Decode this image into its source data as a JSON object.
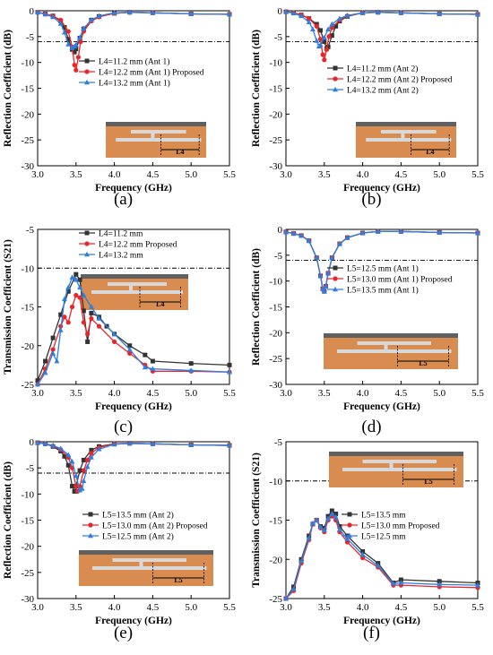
{
  "colors": {
    "black": "#333333",
    "red": "#e8262a",
    "blue": "#2d7fe0",
    "copper": "#d98c4f",
    "ground": "#606060",
    "strip": "#d8d8d8"
  },
  "chart_data": [
    {
      "type": "line",
      "caption": "(a)",
      "xlabel": "Frequency (GHz)",
      "ylabel": "Reflection Coefficient (dB)",
      "xlim": [
        3.0,
        5.5
      ],
      "ylim": [
        -30,
        0
      ],
      "xticks": [
        "3.0",
        "3.5",
        "4.0",
        "4.5",
        "5.0",
        "5.5"
      ],
      "yticks": [
        "0",
        "-5",
        "-10",
        "-15",
        "-20",
        "-25",
        "-30"
      ],
      "threshold": -6,
      "inset_label": "L4",
      "series": [
        {
          "name": "L4=11.2 mm (Ant 1)",
          "color": "#333333",
          "marker": "square",
          "x": [
            3.0,
            3.1,
            3.2,
            3.3,
            3.35,
            3.4,
            3.45,
            3.48,
            3.5,
            3.55,
            3.6,
            3.7,
            3.8,
            4.0,
            4.2,
            4.5,
            5.0,
            5.5
          ],
          "y": [
            -0.3,
            -0.6,
            -1.0,
            -2.0,
            -3.2,
            -5.5,
            -7.5,
            -8.0,
            -7.4,
            -5.3,
            -3.5,
            -1.8,
            -1.1,
            -0.5,
            -0.3,
            -0.4,
            -0.6,
            -0.7
          ]
        },
        {
          "name": "L4=12.2 mm (Ant 1) Proposed",
          "color": "#e8262a",
          "marker": "circle",
          "x": [
            3.0,
            3.1,
            3.2,
            3.3,
            3.4,
            3.45,
            3.48,
            3.5,
            3.53,
            3.56,
            3.6,
            3.7,
            3.8,
            4.0,
            4.2,
            4.5,
            5.0,
            5.5
          ],
          "y": [
            -0.3,
            -0.6,
            -1.0,
            -1.8,
            -4.0,
            -7.0,
            -10.5,
            -11.5,
            -9.0,
            -6.0,
            -4.0,
            -2.0,
            -1.2,
            -0.5,
            -0.3,
            -0.4,
            -0.6,
            -0.7
          ]
        },
        {
          "name": "L4=13.2 mm (Ant 1)",
          "color": "#2d7fe0",
          "marker": "triangle",
          "x": [
            3.0,
            3.1,
            3.2,
            3.3,
            3.35,
            3.4,
            3.45,
            3.48,
            3.5,
            3.55,
            3.6,
            3.7,
            3.8,
            4.0,
            4.2,
            4.5,
            5.0,
            5.5
          ],
          "y": [
            -0.3,
            -0.7,
            -1.2,
            -2.5,
            -4.2,
            -6.5,
            -7.2,
            -6.9,
            -6.6,
            -5.2,
            -3.4,
            -1.8,
            -1.0,
            -0.4,
            -0.3,
            -0.4,
            -0.6,
            -0.7
          ]
        }
      ]
    },
    {
      "type": "line",
      "caption": "(b)",
      "xlabel": "Frequency (GHz)",
      "ylabel": "Reflection Coefficient (dB)",
      "xlim": [
        3.0,
        5.5
      ],
      "ylim": [
        -30,
        0
      ],
      "xticks": [
        "3.0",
        "3.5",
        "4.0",
        "4.5",
        "5.0",
        "5.5"
      ],
      "yticks": [
        "0",
        "-5",
        "-10",
        "-15",
        "-20",
        "-25",
        "-30"
      ],
      "threshold": -6,
      "inset_label": "L4",
      "series": [
        {
          "name": "L4=11.2 mm (Ant 2)",
          "color": "#333333",
          "marker": "square",
          "x": [
            3.0,
            3.1,
            3.2,
            3.3,
            3.4,
            3.45,
            3.5,
            3.53,
            3.55,
            3.6,
            3.65,
            3.7,
            3.8,
            4.0,
            4.2,
            4.5,
            5.0,
            5.5
          ],
          "y": [
            -0.2,
            -0.4,
            -0.8,
            -1.5,
            -2.6,
            -3.8,
            -6.0,
            -7.3,
            -7.0,
            -4.8,
            -3.0,
            -2.0,
            -1.1,
            -0.4,
            -0.3,
            -0.4,
            -0.6,
            -0.7
          ]
        },
        {
          "name": "L4=12.2 mm (Ant 2) Proposed",
          "color": "#e8262a",
          "marker": "circle",
          "x": [
            3.0,
            3.1,
            3.2,
            3.3,
            3.4,
            3.45,
            3.48,
            3.5,
            3.53,
            3.56,
            3.6,
            3.7,
            3.8,
            4.0,
            4.2,
            4.5,
            5.0,
            5.5
          ],
          "y": [
            -0.2,
            -0.4,
            -0.8,
            -1.5,
            -3.0,
            -5.5,
            -8.5,
            -9.5,
            -7.5,
            -5.0,
            -3.3,
            -1.8,
            -1.0,
            -0.4,
            -0.3,
            -0.4,
            -0.6,
            -0.7
          ]
        },
        {
          "name": "L4=13.2 mm (Ant 2)",
          "color": "#2d7fe0",
          "marker": "triangle",
          "x": [
            3.0,
            3.1,
            3.2,
            3.3,
            3.35,
            3.4,
            3.43,
            3.45,
            3.5,
            3.55,
            3.6,
            3.7,
            3.8,
            4.0,
            4.2,
            4.5,
            5.0,
            5.5
          ],
          "y": [
            -0.2,
            -0.5,
            -1.0,
            -2.2,
            -3.6,
            -5.8,
            -6.9,
            -6.6,
            -5.2,
            -3.6,
            -2.6,
            -1.5,
            -0.9,
            -0.4,
            -0.3,
            -0.4,
            -0.6,
            -0.7
          ]
        }
      ]
    },
    {
      "type": "line",
      "caption": "(c)",
      "xlabel": "Frequency (GHz)",
      "ylabel": "Transmission Coefficient (S21)",
      "xlim": [
        3.0,
        5.5
      ],
      "ylim": [
        -25,
        -5
      ],
      "xticks": [
        "3.0",
        "3.5",
        "4.0",
        "4.5",
        "5.0",
        "5.5"
      ],
      "yticks": [
        "-5",
        "-10",
        "-15",
        "-20",
        "-25"
      ],
      "threshold": -10,
      "inset_label": "L4",
      "series": [
        {
          "name": "L4=11.2 mm",
          "color": "#333333",
          "marker": "square",
          "x": [
            3.0,
            3.1,
            3.2,
            3.3,
            3.4,
            3.5,
            3.55,
            3.6,
            3.65,
            3.7,
            3.8,
            3.9,
            4.0,
            4.2,
            4.4,
            4.5,
            5.0,
            5.5
          ],
          "y": [
            -24.5,
            -22.0,
            -19.0,
            -16.0,
            -13.0,
            -10.8,
            -11.5,
            -15.5,
            -19.5,
            -15.8,
            -16.3,
            -17.5,
            -18.5,
            -20.0,
            -21.2,
            -22.0,
            -22.3,
            -22.5
          ]
        },
        {
          "name": "L4=12.2 mm Proposed",
          "color": "#e8262a",
          "marker": "circle",
          "x": [
            3.0,
            3.1,
            3.2,
            3.3,
            3.35,
            3.4,
            3.45,
            3.5,
            3.55,
            3.6,
            3.65,
            3.7,
            3.8,
            4.0,
            4.2,
            4.4,
            4.5,
            5.0,
            5.5
          ],
          "y": [
            -25.0,
            -23.0,
            -20.5,
            -17.5,
            -16.3,
            -17.0,
            -15.0,
            -13.5,
            -13.8,
            -17.0,
            -18.5,
            -16.5,
            -17.5,
            -19.5,
            -21.0,
            -22.5,
            -23.3,
            -23.3,
            -23.4
          ]
        },
        {
          "name": "L4=13.2 mm",
          "color": "#2d7fe0",
          "marker": "triangle",
          "x": [
            3.0,
            3.1,
            3.2,
            3.25,
            3.3,
            3.35,
            3.4,
            3.45,
            3.5,
            3.55,
            3.6,
            3.7,
            3.8,
            4.0,
            4.2,
            4.4,
            4.5,
            5.0,
            5.5
          ],
          "y": [
            -25.0,
            -23.5,
            -21.0,
            -22.0,
            -18.0,
            -14.0,
            -12.5,
            -11.2,
            -11.5,
            -12.5,
            -13.5,
            -15.0,
            -16.5,
            -18.5,
            -20.5,
            -22.8,
            -23.0,
            -23.2,
            -23.4
          ]
        }
      ]
    },
    {
      "type": "line",
      "caption": "(d)",
      "xlabel": "Frequency (GHz)",
      "ylabel": "Reflection Coefficient (dB)",
      "xlim": [
        3.0,
        5.5
      ],
      "ylim": [
        -30,
        0
      ],
      "xticks": [
        "3.0",
        "3.5",
        "4.0",
        "4.5",
        "5.0",
        "5.5"
      ],
      "yticks": [
        "0",
        "-5",
        "-10",
        "-15",
        "-20",
        "-25",
        "-30"
      ],
      "threshold": -6,
      "inset_label": "L5",
      "series": [
        {
          "name": "L5=12.5 mm (Ant 1)",
          "color": "#333333",
          "marker": "square",
          "x": [
            3.0,
            3.1,
            3.2,
            3.3,
            3.4,
            3.45,
            3.48,
            3.5,
            3.52,
            3.55,
            3.6,
            3.7,
            3.8,
            4.0,
            4.2,
            4.5,
            5.0,
            5.5
          ],
          "y": [
            -0.5,
            -0.8,
            -1.2,
            -2.2,
            -5.5,
            -9.0,
            -11.5,
            -12.0,
            -11.0,
            -8.5,
            -5.5,
            -2.8,
            -1.6,
            -0.7,
            -0.4,
            -0.4,
            -0.6,
            -0.7
          ]
        },
        {
          "name": "L5=13.0 mm (Ant 1) Proposed",
          "color": "#e8262a",
          "marker": "circle",
          "x": [
            3.0,
            3.1,
            3.2,
            3.3,
            3.4,
            3.45,
            3.48,
            3.5,
            3.52,
            3.55,
            3.6,
            3.7,
            3.8,
            4.0,
            4.2,
            4.5,
            5.0,
            5.5
          ],
          "y": [
            -0.5,
            -0.8,
            -1.2,
            -2.2,
            -5.5,
            -9.0,
            -11.5,
            -12.0,
            -11.0,
            -8.5,
            -5.5,
            -2.8,
            -1.6,
            -0.7,
            -0.4,
            -0.4,
            -0.6,
            -0.7
          ]
        },
        {
          "name": "L5=13.5 mm (Ant 1)",
          "color": "#2d7fe0",
          "marker": "triangle",
          "x": [
            3.0,
            3.1,
            3.2,
            3.3,
            3.4,
            3.45,
            3.48,
            3.5,
            3.52,
            3.55,
            3.6,
            3.7,
            3.8,
            4.0,
            4.2,
            4.5,
            5.0,
            5.5
          ],
          "y": [
            -0.5,
            -0.8,
            -1.2,
            -2.2,
            -5.5,
            -9.0,
            -11.5,
            -12.0,
            -11.0,
            -8.5,
            -5.5,
            -2.8,
            -1.6,
            -0.7,
            -0.4,
            -0.4,
            -0.6,
            -0.7
          ]
        }
      ]
    },
    {
      "type": "line",
      "caption": "(e)",
      "xlabel": "Frequency (GHz)",
      "ylabel": "Reflection Coefficient (dB)",
      "xlim": [
        3.0,
        5.5
      ],
      "ylim": [
        -30,
        0
      ],
      "xticks": [
        "3.0",
        "3.5",
        "4.0",
        "4.5",
        "5.0",
        "5.5"
      ],
      "yticks": [
        "0",
        "-5",
        "-10",
        "-15",
        "-20",
        "-25",
        "-30"
      ],
      "threshold": -6,
      "inset_label": "L5",
      "series": [
        {
          "name": "L5=13.5 mm (Ant 2)",
          "color": "#333333",
          "marker": "square",
          "x": [
            3.0,
            3.1,
            3.2,
            3.3,
            3.35,
            3.4,
            3.45,
            3.48,
            3.5,
            3.55,
            3.6,
            3.7,
            3.8,
            4.0,
            4.2,
            4.5,
            5.0,
            5.5
          ],
          "y": [
            -0.2,
            -0.4,
            -0.9,
            -1.8,
            -2.8,
            -4.5,
            -8.5,
            -9.5,
            -8.5,
            -5.5,
            -3.5,
            -1.6,
            -0.9,
            -0.4,
            -0.3,
            -0.4,
            -0.6,
            -0.7
          ]
        },
        {
          "name": "L5=13.0 mm (Ant 2) Proposed",
          "color": "#e8262a",
          "marker": "circle",
          "x": [
            3.0,
            3.1,
            3.2,
            3.3,
            3.4,
            3.45,
            3.5,
            3.52,
            3.55,
            3.6,
            3.65,
            3.7,
            3.8,
            4.0,
            4.2,
            4.5,
            5.0,
            5.5
          ],
          "y": [
            -0.2,
            -0.4,
            -0.8,
            -1.5,
            -3.0,
            -5.0,
            -8.5,
            -9.5,
            -8.5,
            -5.5,
            -3.5,
            -2.2,
            -1.1,
            -0.4,
            -0.3,
            -0.4,
            -0.6,
            -0.7
          ]
        },
        {
          "name": "L5=12.5 mm (Ant 2)",
          "color": "#2d7fe0",
          "marker": "triangle",
          "x": [
            3.0,
            3.1,
            3.2,
            3.3,
            3.4,
            3.45,
            3.5,
            3.55,
            3.58,
            3.6,
            3.65,
            3.7,
            3.8,
            4.0,
            4.2,
            4.5,
            5.0,
            5.5
          ],
          "y": [
            -0.2,
            -0.4,
            -0.7,
            -1.3,
            -2.5,
            -3.8,
            -6.5,
            -9.3,
            -9.0,
            -7.5,
            -4.8,
            -3.0,
            -1.4,
            -0.5,
            -0.3,
            -0.4,
            -0.6,
            -0.7
          ]
        }
      ]
    },
    {
      "type": "line",
      "caption": "(f)",
      "xlabel": "Frequency (GHz)",
      "ylabel": "Transmission Coefficient (S21)",
      "xlim": [
        3.0,
        5.5
      ],
      "ylim": [
        -25,
        -5
      ],
      "xticks": [
        "3.0",
        "3.5",
        "4.0",
        "4.5",
        "5.0",
        "5.5"
      ],
      "yticks": [
        "-5",
        "-10",
        "-15",
        "-20",
        "-25"
      ],
      "threshold": -10,
      "inset_label": "L5",
      "series": [
        {
          "name": "L5=13.5 mm",
          "color": "#333333",
          "marker": "square",
          "x": [
            3.0,
            3.1,
            3.2,
            3.3,
            3.35,
            3.4,
            3.45,
            3.5,
            3.55,
            3.6,
            3.65,
            3.7,
            3.8,
            4.0,
            4.2,
            4.4,
            4.5,
            5.0,
            5.5
          ],
          "y": [
            -25.0,
            -23.5,
            -20.0,
            -17.0,
            -15.5,
            -15.0,
            -15.8,
            -16.0,
            -14.5,
            -13.8,
            -14.2,
            -15.8,
            -17.0,
            -19.0,
            -20.5,
            -23.0,
            -22.6,
            -22.8,
            -23.0
          ]
        },
        {
          "name": "L5=13.0 mm Proposed",
          "color": "#e8262a",
          "marker": "circle",
          "x": [
            3.0,
            3.1,
            3.2,
            3.3,
            3.35,
            3.4,
            3.45,
            3.5,
            3.55,
            3.6,
            3.65,
            3.7,
            3.8,
            4.0,
            4.2,
            4.4,
            4.5,
            5.0,
            5.5
          ],
          "y": [
            -25.0,
            -24.0,
            -20.5,
            -17.5,
            -15.5,
            -15.0,
            -16.0,
            -16.5,
            -15.0,
            -14.5,
            -15.0,
            -16.5,
            -17.8,
            -19.8,
            -21.0,
            -23.3,
            -23.3,
            -23.5,
            -23.6
          ]
        },
        {
          "name": "L5=12.5 mm",
          "color": "#2d7fe0",
          "marker": "triangle",
          "x": [
            3.0,
            3.1,
            3.2,
            3.3,
            3.35,
            3.4,
            3.45,
            3.5,
            3.55,
            3.6,
            3.65,
            3.7,
            3.8,
            4.0,
            4.2,
            4.4,
            4.5,
            5.0,
            5.5
          ],
          "y": [
            -25.0,
            -23.8,
            -20.2,
            -17.3,
            -15.4,
            -15.0,
            -15.9,
            -16.3,
            -14.8,
            -14.2,
            -14.6,
            -16.2,
            -17.4,
            -19.4,
            -20.8,
            -23.1,
            -23.0,
            -23.2,
            -23.3
          ]
        }
      ]
    }
  ]
}
